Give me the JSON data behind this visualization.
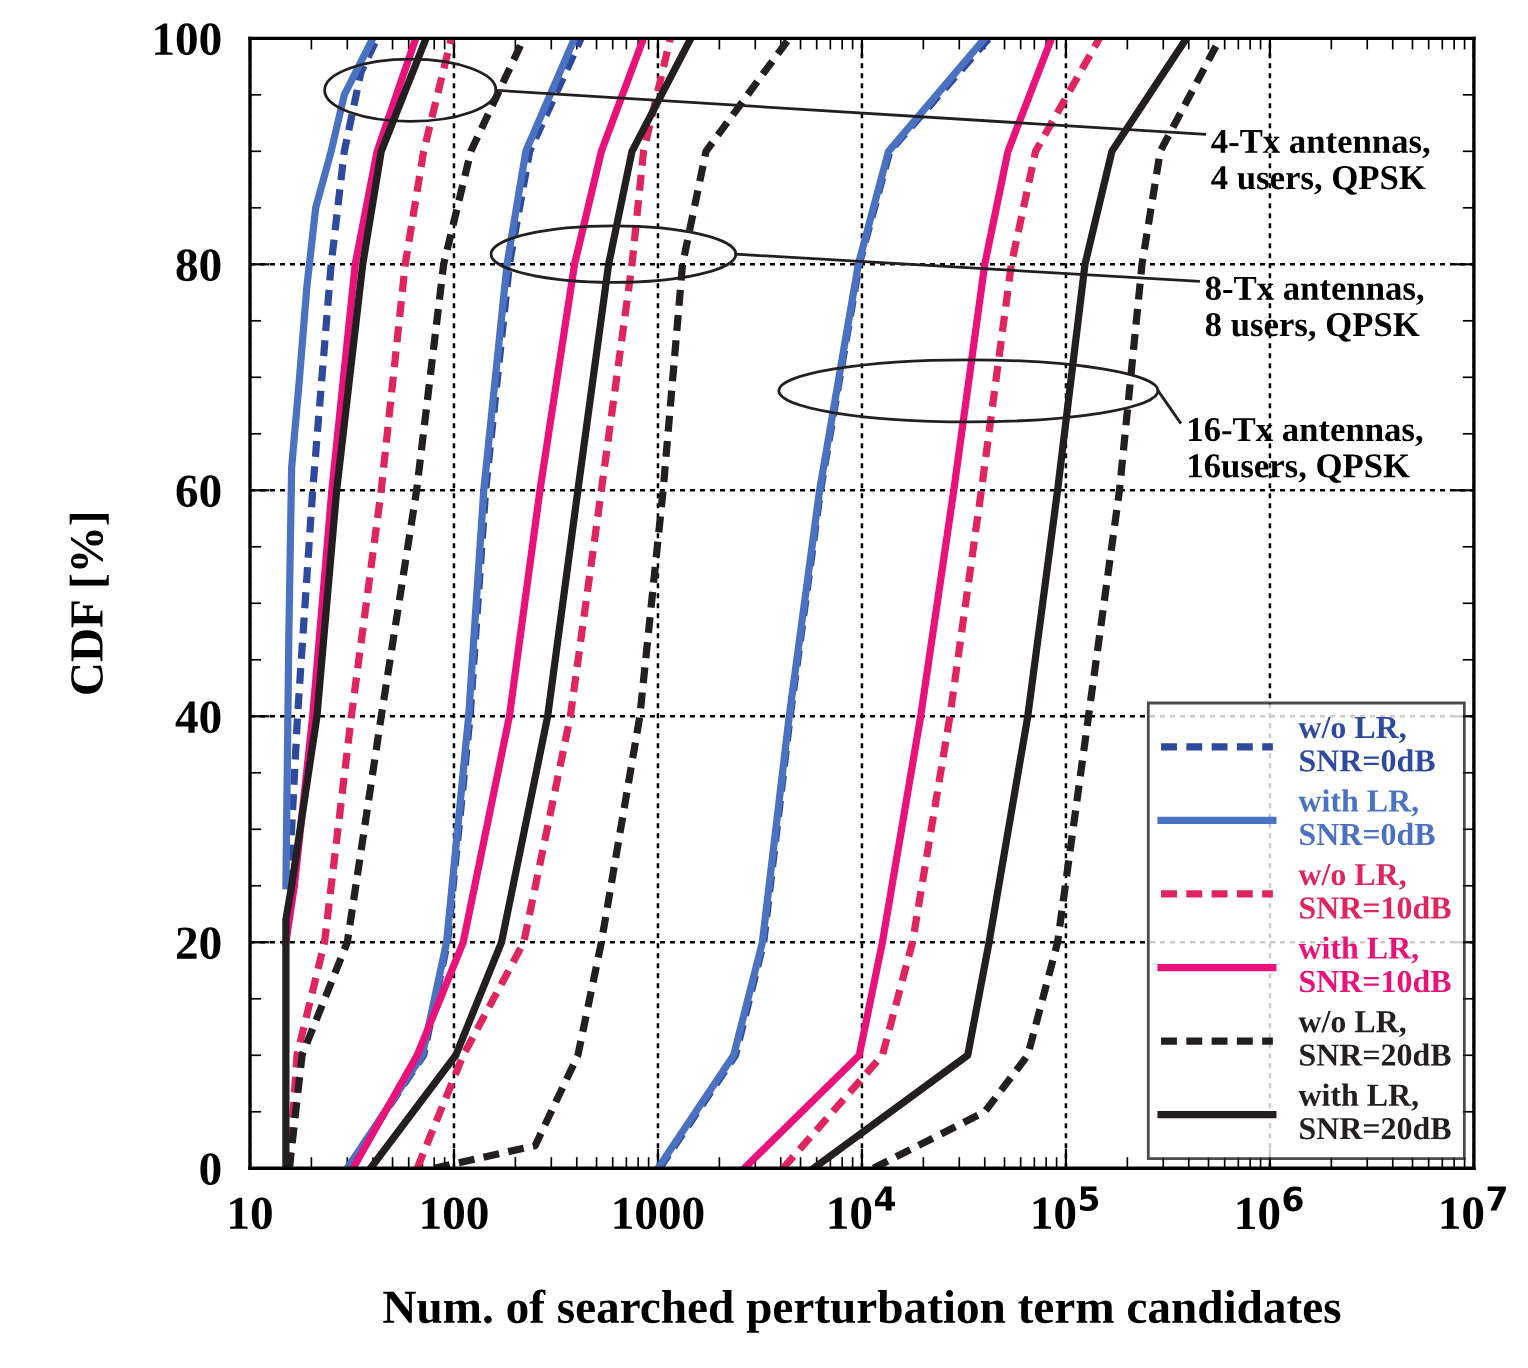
{
  "chart_data": {
    "type": "line",
    "xlabel": "Num. of searched perturbation term candidates",
    "ylabel": "CDF [%]",
    "log": "x",
    "xlim": [
      10,
      10000000
    ],
    "ylim": [
      0,
      100
    ],
    "xticks": [
      10,
      100,
      1000,
      {
        "value": 10000,
        "label": "10$^{4}$"
      },
      {
        "value": 100000,
        "label": "10$^{5}$"
      },
      {
        "value": 1000000,
        "label": "10$^{6}$"
      },
      {
        "value": 10000000,
        "label": "10$^{7}$"
      }
    ],
    "yticks": [
      0,
      20,
      40,
      60,
      80,
      100
    ],
    "grid": true,
    "legend": "bottom right",
    "marker": "none",
    "annotations": [
      "4-Tx antennas,\n4 users, QPSK",
      "8-Tx antennas,\n8 users, QPSK",
      "16-Tx antennas,\n16users, QPSK"
    ],
    "series": [
      {
        "name": "w/o LR,\nSNR=0dB",
        "color": "#2e4a9e",
        "line_style": "dashed",
        "x": [
          15.5,
          16,
          17.1,
          20.3,
          25,
          29,
          35,
          42,
          null,
          30,
          71,
          93,
          120,
          143,
          187,
          235,
          420,
          null,
          1020,
          2400,
          3300,
          4450,
          6270,
          9700,
          13700,
          42000
        ],
        "values": [
          25,
          30,
          40,
          60,
          80,
          90,
          97,
          100,
          null,
          0,
          10,
          20,
          40,
          60,
          80,
          90,
          100,
          null,
          0,
          10,
          20,
          40,
          60,
          80,
          90,
          100
        ]
      },
      {
        "name": "with LR,\nSNR=0dB",
        "color": "#4a72c0",
        "line_style": "solid",
        "x": [
          15,
          15.5,
          16,
          17.5,
          19,
          21,
          25,
          29,
          40,
          null,
          30,
          70,
          92,
          118,
          140,
          182,
          225,
          390,
          null,
          1000,
          2350,
          3250,
          4400,
          6200,
          9600,
          13500,
          40000
        ],
        "values": [
          25,
          47,
          62,
          70,
          78,
          85,
          90,
          95,
          100,
          null,
          0,
          10,
          20,
          40,
          60,
          80,
          90,
          100,
          null,
          0,
          10,
          20,
          40,
          60,
          80,
          90,
          100
        ]
      },
      {
        "name": "w/o LR,\nSNR=10dB",
        "color": "#e0245e",
        "line_style": "dashed",
        "x": [
          15.6,
          17,
          23.2,
          31.4,
          44,
          57.7,
          71,
          97,
          null,
          66,
          111,
          220,
          372,
          528,
          746,
          850,
          1150,
          null,
          4100,
          12600,
          17700,
          27000,
          38500,
          54000,
          71000,
          146000
        ],
        "values": [
          0,
          10,
          20,
          40,
          60,
          80,
          90,
          100,
          null,
          0,
          10,
          20,
          40,
          60,
          80,
          90,
          100,
          null,
          0,
          10,
          20,
          40,
          60,
          80,
          90,
          100
        ]
      },
      {
        "name": "with LR,\nSNR=10dB",
        "color": "#e8127a",
        "line_style": "solid",
        "x": [
          15,
          16.5,
          20.3,
          25.2,
          32.8,
          42,
          65,
          null,
          32,
          66,
          111,
          187,
          264,
          390,
          528,
          850,
          null,
          2650,
          9700,
          12600,
          19400,
          28200,
          40000,
          52000,
          85000
        ],
        "values": [
          20,
          25,
          40,
          60,
          80,
          90,
          100,
          null,
          0,
          10,
          20,
          40,
          60,
          80,
          90,
          100,
          null,
          0,
          10,
          20,
          40,
          60,
          80,
          90,
          100
        ]
      },
      {
        "name": "w/o LR,\nSNR=20dB",
        "color": "#231f20",
        "line_style": "dashed",
        "x": [
          15.6,
          18,
          30,
          44,
          65.6,
          89,
          121,
          220,
          null,
          80,
          250,
          405,
          528,
          815,
          1060,
          1320,
          1720,
          4400,
          null,
          11400,
          40000,
          65000,
          91000,
          129000,
          183000,
          236000,
          290000,
          570000
        ],
        "values": [
          0,
          10,
          20,
          40,
          60,
          80,
          90,
          100,
          null,
          0,
          2,
          10,
          20,
          40,
          60,
          80,
          90,
          100,
          null,
          0,
          5,
          10,
          20,
          40,
          60,
          80,
          90,
          100
        ]
      },
      {
        "name": "with LR,\nSNR=20dB",
        "color": "#231f20",
        "line_style": "solid",
        "x": [
          15,
          15,
          16,
          21.3,
          26.6,
          35.7,
          44,
          73,
          null,
          39,
          102,
          171,
          288,
          405,
          573,
          746,
          1450,
          null,
          5800,
          33000,
          42000,
          65000,
          91000,
          124000,
          168000,
          390000
        ],
        "values": [
          0,
          22,
          25,
          40,
          60,
          80,
          90,
          100,
          null,
          0,
          10,
          20,
          40,
          60,
          80,
          90,
          100,
          null,
          0,
          10,
          20,
          40,
          60,
          80,
          90,
          100
        ]
      }
    ]
  }
}
